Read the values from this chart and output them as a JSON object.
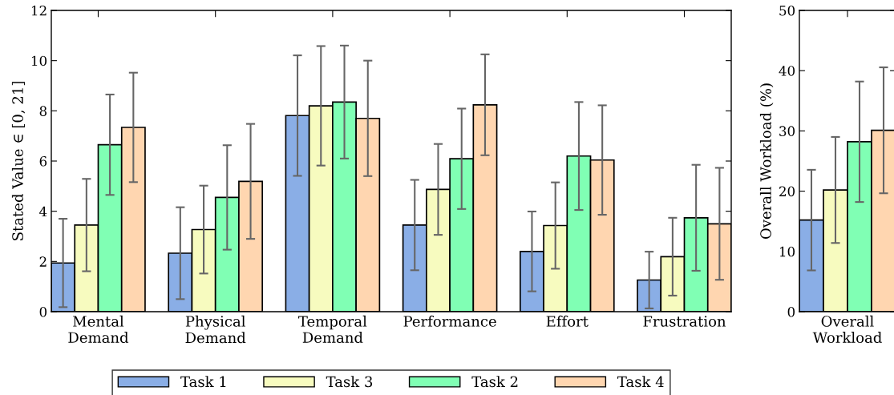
{
  "chart_data": [
    {
      "type": "bar",
      "ylabel": "Stated Value ∈ [0, 21]",
      "categories": [
        "Mental\nDemand",
        "Physical\nDemand",
        "Temporal\nDemand",
        "Performance",
        "Effort",
        "Frustration"
      ],
      "ylim": [
        0,
        12
      ],
      "yticks": [
        0,
        2,
        4,
        6,
        8,
        10,
        12
      ],
      "grid": false,
      "legend": "bottom",
      "series": [
        {
          "name": "Task 1",
          "color": "#8aaee6",
          "values": [
            1.94,
            2.33,
            7.81,
            3.45,
            2.4,
            1.26
          ],
          "errors": [
            1.76,
            1.83,
            2.4,
            1.8,
            1.59,
            1.13
          ]
        },
        {
          "name": "Task 3",
          "color": "#f7fbbf",
          "values": [
            3.45,
            3.27,
            8.2,
            4.87,
            3.43,
            2.19
          ],
          "errors": [
            1.84,
            1.75,
            2.38,
            1.81,
            1.72,
            1.55
          ]
        },
        {
          "name": "Task 2",
          "color": "#80ffb4",
          "values": [
            6.65,
            4.55,
            8.35,
            6.09,
            6.2,
            3.74
          ],
          "errors": [
            2.0,
            2.08,
            2.25,
            2.0,
            2.15,
            2.11
          ]
        },
        {
          "name": "Task 4",
          "color": "#ffd6b0",
          "values": [
            7.34,
            5.19,
            7.7,
            8.24,
            6.04,
            3.5
          ],
          "errors": [
            2.18,
            2.29,
            2.3,
            2.01,
            2.18,
            2.23
          ]
        }
      ]
    },
    {
      "type": "bar",
      "ylabel": "Overall Workload (%)",
      "categories": [
        "Overall\nWorkload"
      ],
      "ylim": [
        0,
        50
      ],
      "yticks": [
        0,
        10,
        20,
        30,
        40,
        50
      ],
      "grid": false,
      "series": [
        {
          "color": "#8aaee6",
          "values": [
            15.2
          ],
          "errors": [
            8.35
          ]
        },
        {
          "color": "#f7fbbf",
          "values": [
            20.2
          ],
          "errors": [
            8.8
          ]
        },
        {
          "color": "#80ffb4",
          "values": [
            28.2
          ],
          "errors": [
            10.0
          ]
        },
        {
          "color": "#ffd6b0",
          "values": [
            30.1
          ],
          "errors": [
            10.45
          ]
        }
      ]
    }
  ]
}
